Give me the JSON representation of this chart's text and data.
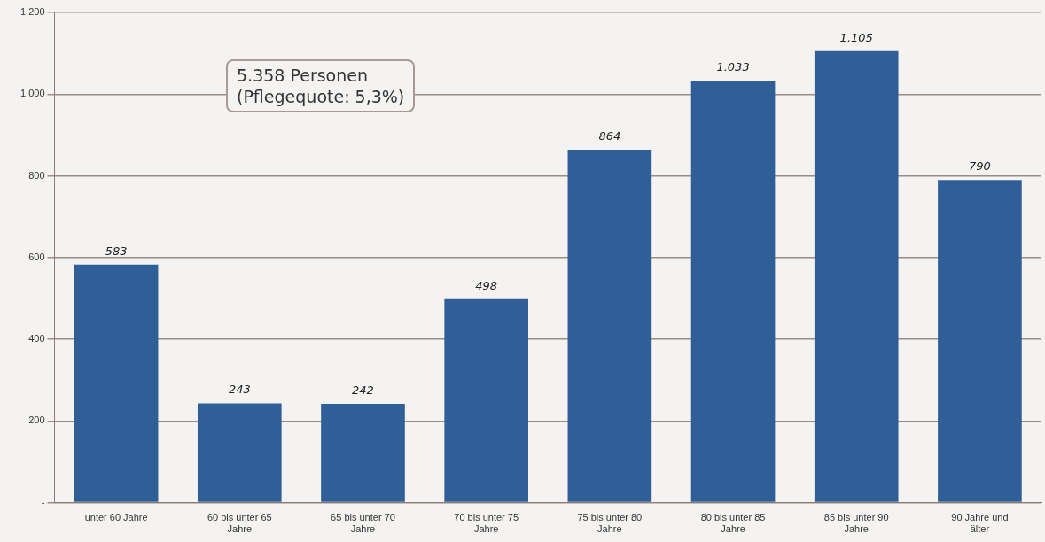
{
  "chart_data": {
    "type": "bar",
    "categories": [
      "unter 60 Jahre",
      "60 bis unter 65 Jahre",
      "65 bis unter 70 Jahre",
      "70 bis unter 75 Jahre",
      "75 bis unter 80 Jahre",
      "80 bis unter 85 Jahre",
      "85 bis unter 90 Jahre",
      "90 Jahre und älter"
    ],
    "values": [
      583,
      243,
      242,
      498,
      864,
      1033,
      1105,
      790
    ],
    "value_labels": [
      "583",
      "243",
      "242",
      "498",
      "864",
      "1.033",
      "1.105",
      "790"
    ],
    "color": "#2f5f96",
    "ylim": [
      0,
      1200
    ],
    "yticks": [
      {
        "value": 0,
        "label": "-"
      },
      200,
      400,
      600,
      800,
      {
        "value": 1000,
        "label": "1.000"
      },
      {
        "value": 1200,
        "label": "1.200"
      }
    ],
    "grid": "y",
    "legend": false,
    "annotations": [
      "5.358 Personen\n(Pflegequote: 5,3%)"
    ]
  }
}
